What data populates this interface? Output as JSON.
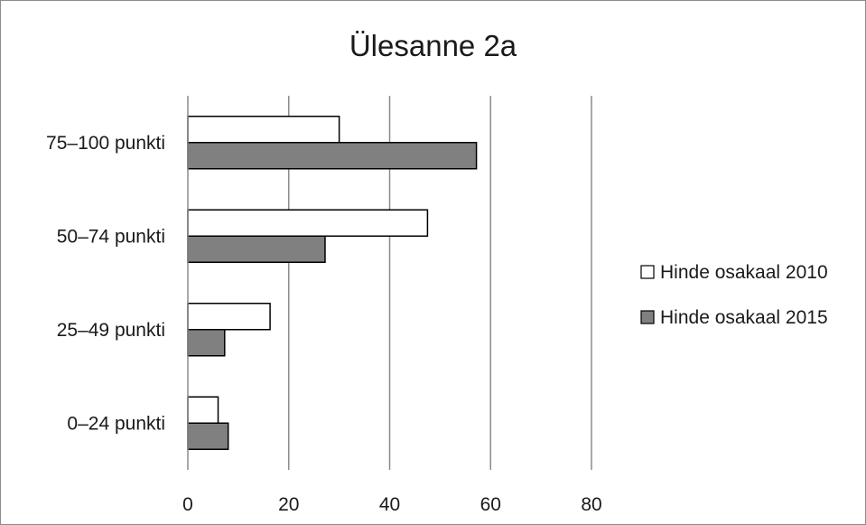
{
  "chart_data": {
    "type": "bar",
    "orientation": "horizontal",
    "title": "Ülesanne 2a",
    "categories": [
      "75–100 punkti",
      "50–74 punkti",
      "25–49 punkti",
      "0–24 punkti"
    ],
    "series": [
      {
        "name": "Hinde osakaal 2010",
        "color": "#ffffff",
        "values": [
          30,
          47.5,
          16.3,
          6
        ]
      },
      {
        "name": "Hinde osakaal 2015",
        "color": "#808080",
        "values": [
          57.2,
          27.2,
          7.3,
          8
        ]
      }
    ],
    "xlim": [
      0,
      80
    ],
    "xticks": [
      "0",
      "20",
      "40",
      "60",
      "80"
    ],
    "grid": true,
    "legend": "right"
  }
}
